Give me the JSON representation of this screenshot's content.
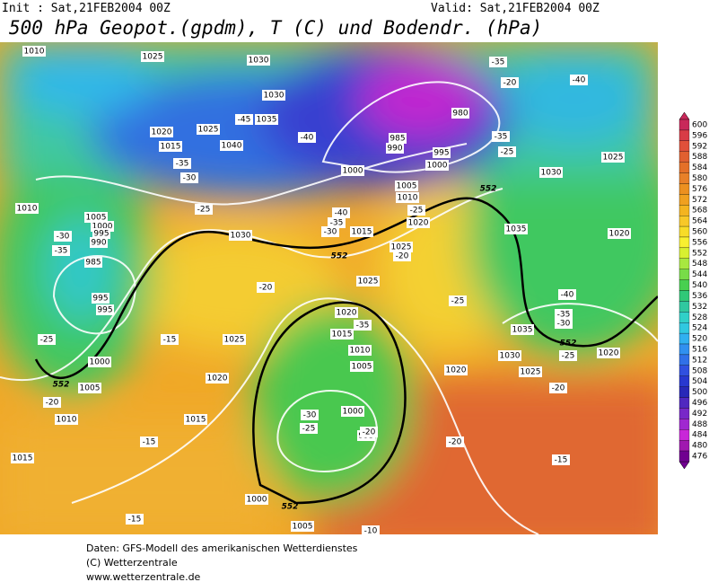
{
  "header": {
    "init": "Init : Sat,21FEB2004 00Z",
    "valid": "Valid: Sat,21FEB2004 00Z",
    "title": "500 hPa Geopot.(gpdm), T (C) und Bodendr. (hPa)"
  },
  "colorbar": {
    "labels": [
      "600",
      "596",
      "592",
      "588",
      "584",
      "580",
      "576",
      "572",
      "568",
      "564",
      "560",
      "556",
      "552",
      "548",
      "544",
      "540",
      "536",
      "532",
      "528",
      "524",
      "520",
      "516",
      "512",
      "508",
      "504",
      "500",
      "496",
      "492",
      "488",
      "484",
      "480",
      "476"
    ],
    "colors": [
      "#c8285a",
      "#d83c46",
      "#e0503a",
      "#e06030",
      "#e47028",
      "#e88028",
      "#ec9020",
      "#f0a020",
      "#f4b420",
      "#f8c828",
      "#f8dc28",
      "#f8f030",
      "#d8f030",
      "#a8e840",
      "#78dc48",
      "#48d050",
      "#30c878",
      "#30c8a0",
      "#30d0c8",
      "#30c8e0",
      "#30b0f0",
      "#3090f0",
      "#3070e8",
      "#3050e0",
      "#2838d0",
      "#2828b8",
      "#5028c0",
      "#7828c8",
      "#a028d0",
      "#c828d8",
      "#a018b0",
      "#700090"
    ]
  },
  "map_labels": [
    "1010",
    "1025",
    "1030",
    "1030",
    "-45",
    "1035",
    "1025",
    "1040",
    "1020",
    "1015",
    "-35",
    "-30",
    "-25",
    "-40",
    "985",
    "990",
    "995",
    "1000",
    "1000",
    "980",
    "-35",
    "-20",
    "-40",
    "-35",
    "-25",
    "1030",
    "1025",
    "1005",
    "1010",
    "-25",
    "1020",
    "-40",
    "-35",
    "-30",
    "1015",
    "1030",
    "1035",
    "1020",
    "1025",
    "-20",
    "1010",
    "1005",
    "1000",
    "995",
    "990",
    "-30",
    "-35",
    "985",
    "995",
    "995",
    "-25",
    "1000",
    "1005",
    "-20",
    "1010",
    "1015",
    "-20",
    "1025",
    "1020",
    "-35",
    "1015",
    "1025",
    "-15",
    "1010",
    "1005",
    "1020",
    "1015",
    "-30",
    "-25",
    "1000",
    "995",
    "-20",
    "-15",
    "-20",
    "1000",
    "1005",
    "-10",
    "-15",
    "-15",
    "-20",
    "-25",
    "1035",
    "1030",
    "1025",
    "1020",
    "1020",
    "-25",
    "-40",
    "-35",
    "-30",
    "552",
    "552",
    "552",
    "552",
    "552"
  ],
  "footer": {
    "line1": "Daten: GFS-Modell des amerikanischen Wetterdienstes",
    "line2": "(C) Wetterzentrale",
    "line3": "www.wetterzentrale.de"
  }
}
